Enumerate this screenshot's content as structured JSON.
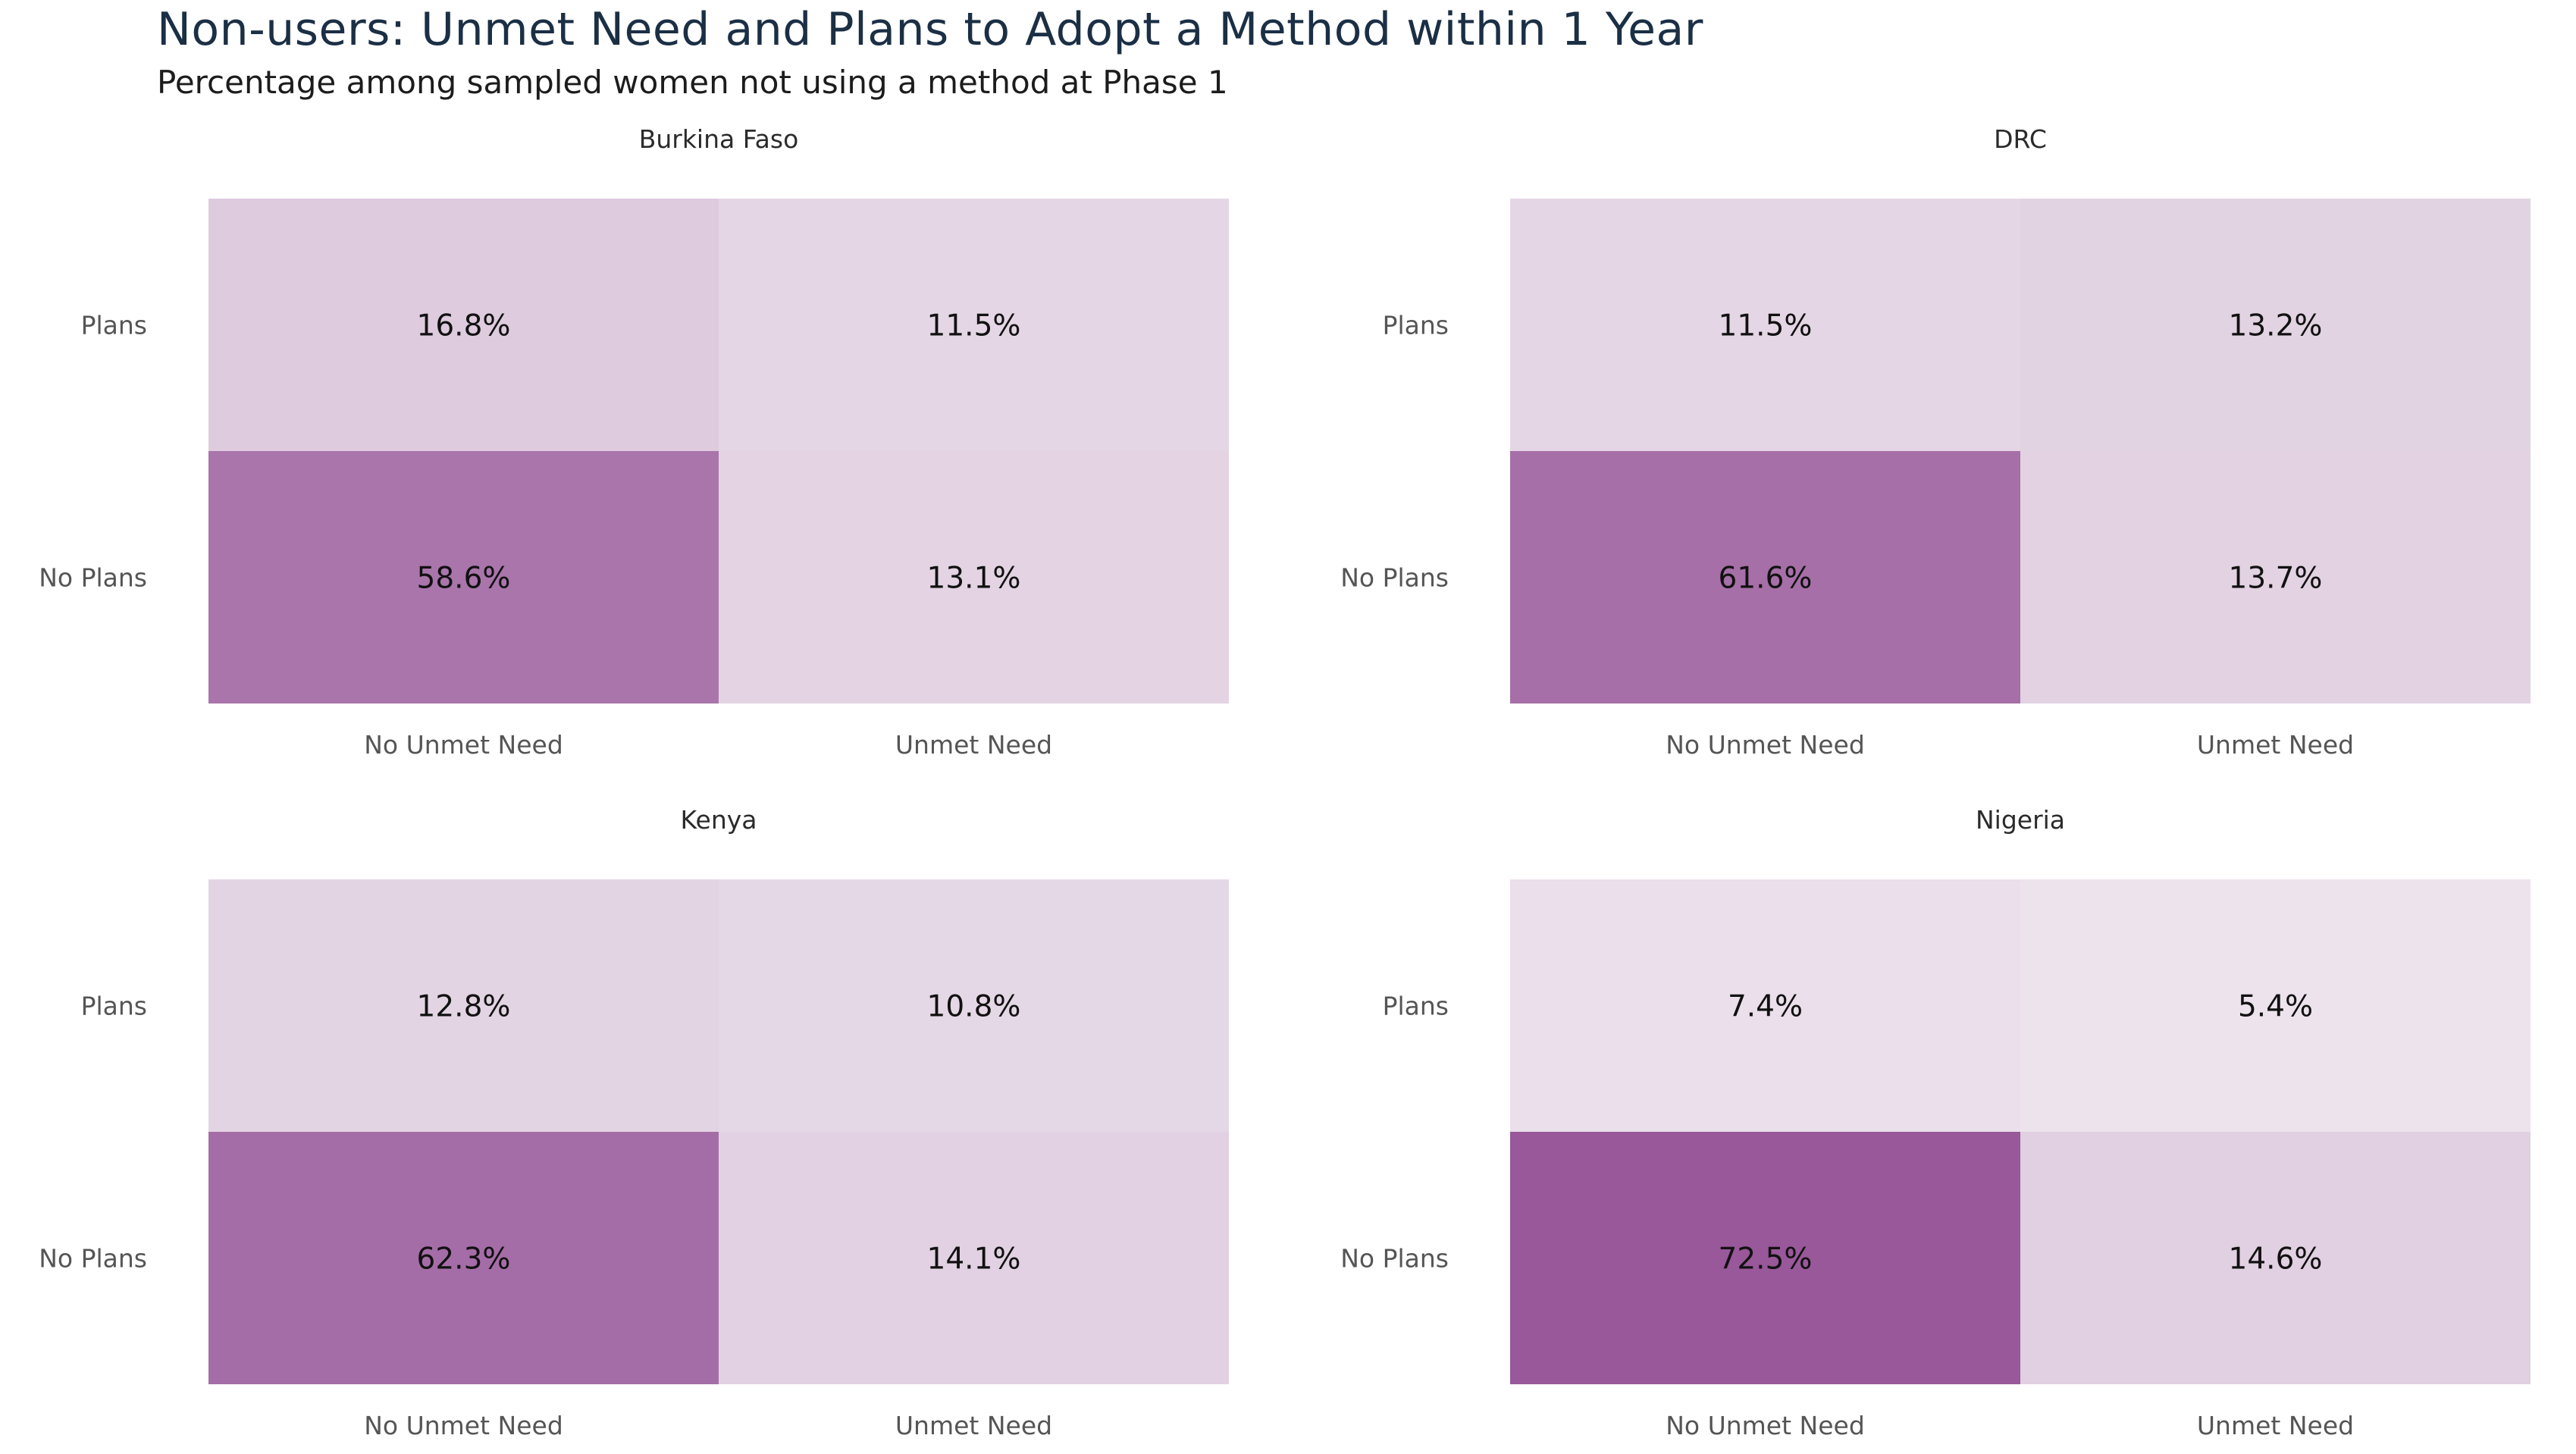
{
  "title": "Non-users: Unmet Need and Plans to Adopt a Method within 1 Year",
  "subtitle": "Percentage among sampled women not using a method at Phase 1",
  "colors": {
    "low": "#f3eef3",
    "high": "#98589a"
  },
  "chart_data": {
    "type": "heatmap",
    "rows": [
      "Plans",
      "No Plans"
    ],
    "columns": [
      "No Unmet Need",
      "Unmet Need"
    ],
    "value_format": "percent",
    "panels": [
      {
        "name": "Burkina Faso",
        "values": [
          [
            16.8,
            11.5
          ],
          [
            58.6,
            13.1
          ]
        ]
      },
      {
        "name": "DRC",
        "values": [
          [
            11.5,
            13.2
          ],
          [
            61.6,
            13.7
          ]
        ]
      },
      {
        "name": "Kenya",
        "values": [
          [
            12.8,
            10.8
          ],
          [
            62.3,
            14.1
          ]
        ]
      },
      {
        "name": "Nigeria",
        "values": [
          [
            7.4,
            5.4
          ],
          [
            72.5,
            14.6
          ]
        ]
      }
    ]
  }
}
